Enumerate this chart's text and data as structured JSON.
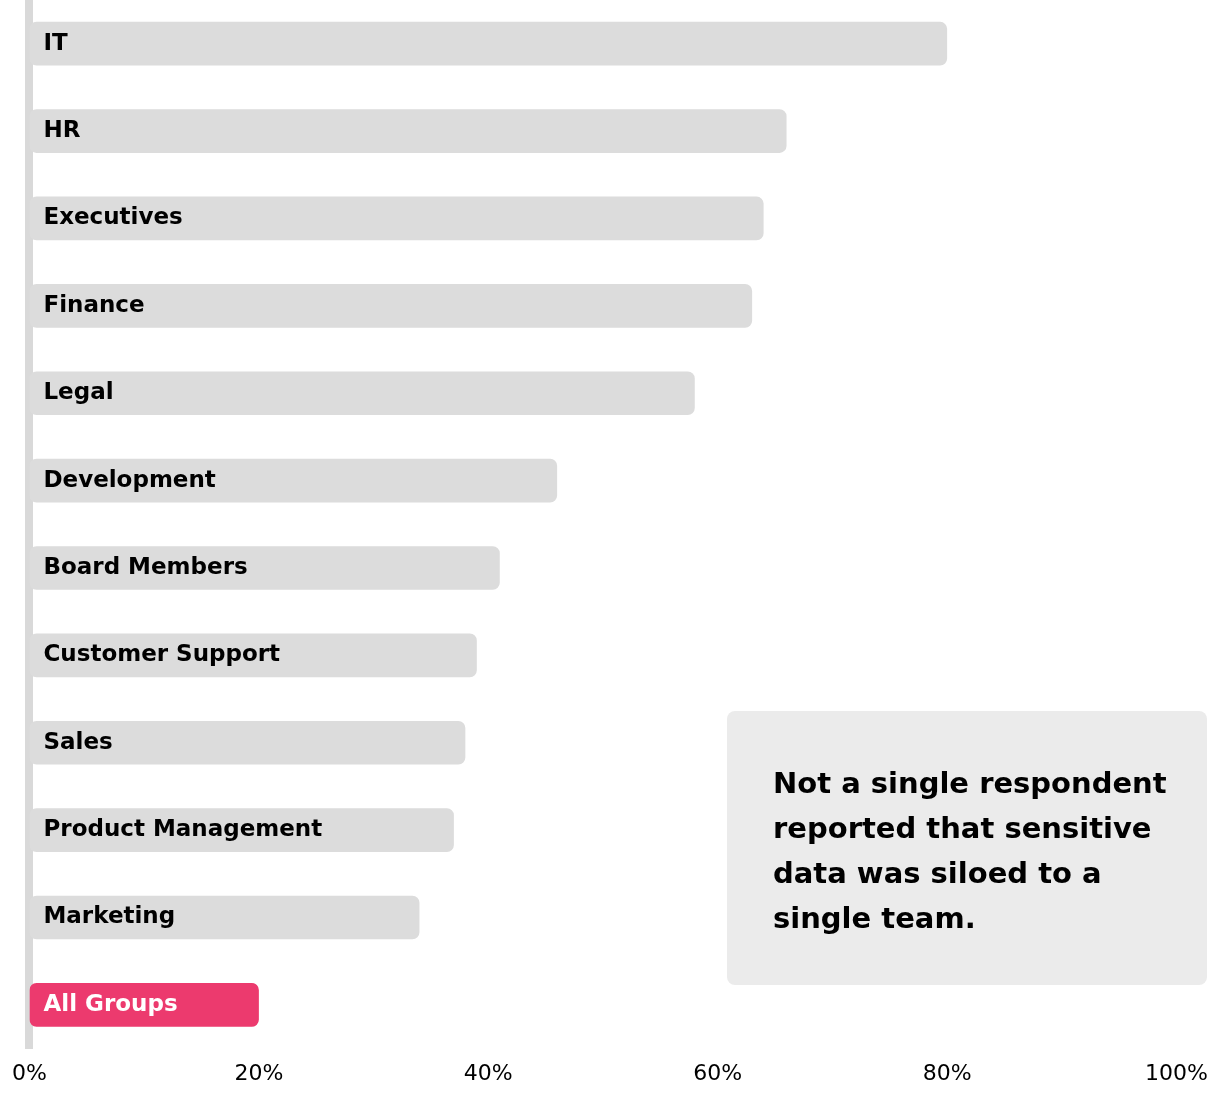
{
  "chart_data": {
    "type": "bar",
    "orientation": "horizontal",
    "categories": [
      "IT",
      "HR",
      "Executives",
      "Finance",
      "Legal",
      "Development",
      "Board Members",
      "Customer Support",
      "Sales",
      "Product Management",
      "Marketing",
      "All Groups"
    ],
    "values": [
      80,
      66,
      64,
      63,
      58,
      46,
      41,
      39,
      38,
      37,
      34,
      20
    ],
    "colors": [
      "#dcdcdc",
      "#dcdcdc",
      "#dcdcdc",
      "#dcdcdc",
      "#dcdcdc",
      "#dcdcdc",
      "#dcdcdc",
      "#dcdcdc",
      "#dcdcdc",
      "#dcdcdc",
      "#dcdcdc",
      "#ec3a6e"
    ],
    "xlim": [
      0,
      100
    ],
    "xticks": [
      {
        "value": 0,
        "label": "0%"
      },
      {
        "value": 20,
        "label": "20%"
      },
      {
        "value": 40,
        "label": "40%"
      },
      {
        "value": 60,
        "label": "60%"
      },
      {
        "value": 80,
        "label": "80%"
      },
      {
        "value": 100,
        "label": "100%"
      }
    ],
    "grid": false,
    "legend": false,
    "annotations": [
      "Not a single respondent reported that sensitive data was siloed to a single team."
    ]
  }
}
